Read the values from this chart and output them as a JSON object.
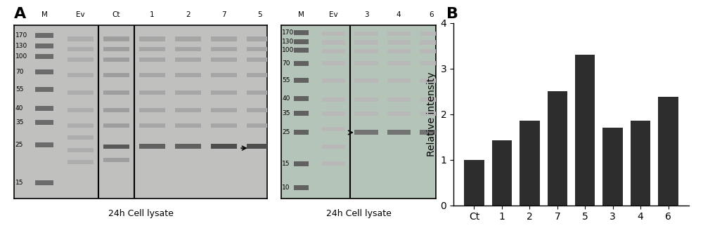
{
  "categories": [
    "Ct",
    "1",
    "2",
    "7",
    "5",
    "3",
    "4",
    "6"
  ],
  "values": [
    1.0,
    1.42,
    1.85,
    2.5,
    3.3,
    1.7,
    1.85,
    2.38
  ],
  "bar_color": "#2d2d2d",
  "ylabel": "Relative intensity",
  "ylim": [
    0,
    4
  ],
  "yticks": [
    0,
    1,
    2,
    3,
    4
  ],
  "panel_label_B": "B",
  "panel_label_A": "A",
  "panel_label_fontsize": 16,
  "tick_fontsize": 10,
  "ylabel_fontsize": 10,
  "background_color": "#ffffff",
  "gel1_bg": "#c8c8c8",
  "gel2_bg": "#b0b8b0",
  "gel_border": "#000000",
  "gel1_labels": [
    "M",
    "Ev",
    "Ct",
    "1",
    "2",
    "7",
    "5"
  ],
  "gel2_labels": [
    "M",
    "Ev",
    "3",
    "4",
    "6"
  ],
  "gel1_mw": [
    "170",
    "130",
    "100",
    "70",
    "55",
    "40",
    "35",
    "25",
    "15"
  ],
  "gel2_mw": [
    "170",
    "130",
    "100",
    "70",
    "55",
    "40",
    "35",
    "25",
    "15",
    "10"
  ],
  "gel1_caption": "24h Cell lysate",
  "gel2_caption": "24h Cell lysate"
}
